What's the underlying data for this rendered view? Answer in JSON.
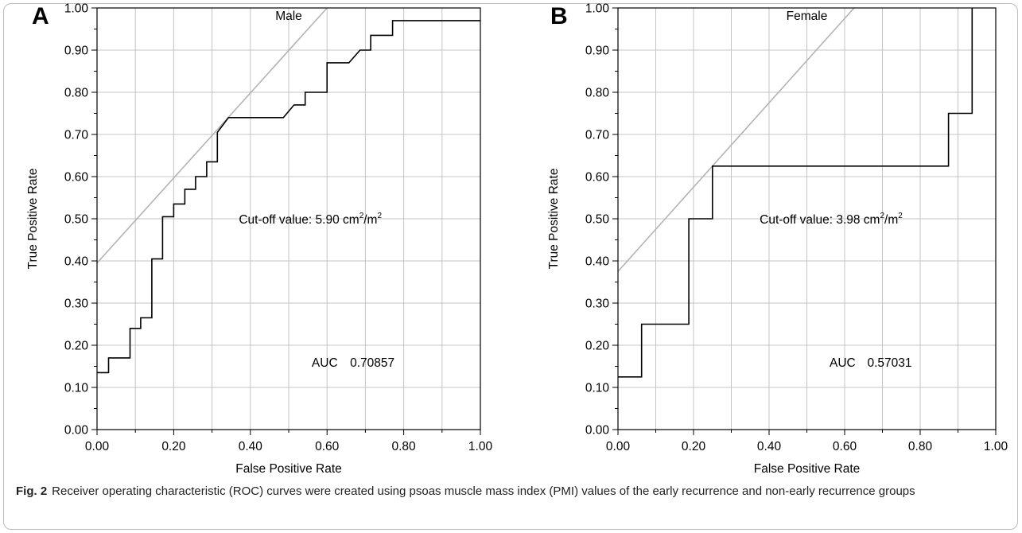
{
  "chart_data": [
    {
      "type": "line",
      "panel_label": "A",
      "title": "Male",
      "xlabel": "False Positive Rate",
      "ylabel": "True Positive Rate",
      "xlim": [
        0,
        1
      ],
      "ylim": [
        0,
        1
      ],
      "xticks": [
        "0.00",
        "0.20",
        "0.40",
        "0.60",
        "0.80",
        "1.00"
      ],
      "yticks": [
        "0.00",
        "0.10",
        "0.20",
        "0.30",
        "0.40",
        "0.50",
        "0.60",
        "0.70",
        "0.80",
        "0.90",
        "1.00"
      ],
      "grid": true,
      "reference_line": {
        "x": [
          0,
          0.6
        ],
        "y": [
          0.395,
          1.0
        ],
        "color": "#b3b3b3"
      },
      "series": [
        {
          "color": "#000000",
          "x": [
            0,
            0.03,
            0.03,
            0.086,
            0.086,
            0.114,
            0.114,
            0.143,
            0.143,
            0.171,
            0.171,
            0.2,
            0.2,
            0.229,
            0.229,
            0.257,
            0.257,
            0.286,
            0.286,
            0.314,
            0.314,
            0.343,
            0.486,
            0.514,
            0.543,
            0.543,
            0.6,
            0.6,
            0.657,
            0.686,
            0.714,
            0.714,
            0.771,
            0.771,
            1.0
          ],
          "y": [
            0.135,
            0.135,
            0.17,
            0.17,
            0.24,
            0.24,
            0.265,
            0.265,
            0.405,
            0.405,
            0.505,
            0.505,
            0.535,
            0.535,
            0.57,
            0.57,
            0.6,
            0.6,
            0.635,
            0.635,
            0.705,
            0.74,
            0.74,
            0.77,
            0.77,
            0.8,
            0.8,
            0.87,
            0.87,
            0.9,
            0.9,
            0.935,
            0.935,
            0.97,
            0.97
          ]
        }
      ],
      "annotations": {
        "cutoff_prefix": "Cut-off value: 5.90 cm",
        "cutoff_sup1": "2",
        "cutoff_mid": "/m",
        "cutoff_sup2": "2",
        "auc_label": "AUC",
        "auc_value": "0.70857"
      }
    },
    {
      "type": "line",
      "panel_label": "B",
      "title": "Female",
      "xlabel": "False Positive Rate",
      "ylabel": "True Positive Rate",
      "xlim": [
        0,
        1
      ],
      "ylim": [
        0,
        1
      ],
      "xticks": [
        "0.00",
        "0.20",
        "0.40",
        "0.60",
        "0.80",
        "1.00"
      ],
      "yticks": [
        "0.00",
        "0.10",
        "0.20",
        "0.30",
        "0.40",
        "0.50",
        "0.60",
        "0.70",
        "0.80",
        "0.90",
        "1.00"
      ],
      "grid": true,
      "reference_line": {
        "x": [
          0,
          0.625
        ],
        "y": [
          0.375,
          1.0
        ],
        "color": "#b3b3b3"
      },
      "series": [
        {
          "color": "#000000",
          "x": [
            0,
            0.0625,
            0.0625,
            0.1875,
            0.1875,
            0.25,
            0.25,
            0.875,
            0.875,
            0.9375,
            0.9375
          ],
          "y": [
            0.125,
            0.125,
            0.25,
            0.25,
            0.5,
            0.5,
            0.625,
            0.625,
            0.75,
            0.75,
            1.0
          ]
        }
      ],
      "annotations": {
        "cutoff_prefix": "Cut-off value: 3.98 cm",
        "cutoff_sup1": "2",
        "cutoff_mid": "/m",
        "cutoff_sup2": "2",
        "auc_label": "AUC",
        "auc_value": "0.57031"
      }
    }
  ],
  "caption": {
    "label": "Fig. 2",
    "text": "Receiver operating characteristic (ROC) curves were created using psoas muscle mass index (PMI) values of the early recurrence and non-early recurrence groups"
  }
}
